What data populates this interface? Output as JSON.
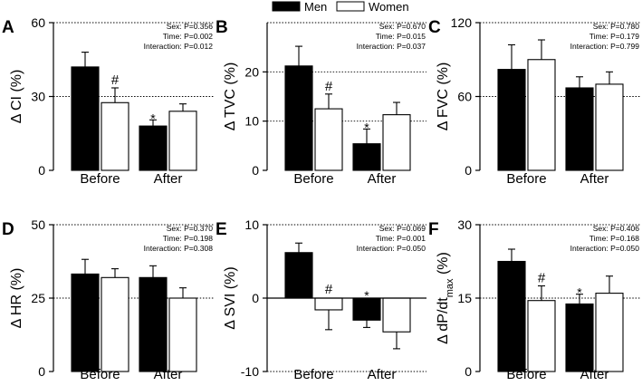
{
  "legend": {
    "series": [
      {
        "name": "Men",
        "color": "#000000"
      },
      {
        "name": "Women",
        "color": "#ffffff"
      }
    ]
  },
  "chart_data": [
    {
      "type": "bar",
      "panel": "A",
      "ylabel": "Δ CI (%)",
      "categories": [
        "Before",
        "After"
      ],
      "yticks": [
        0,
        30,
        60
      ],
      "ylim": [
        0,
        60
      ],
      "ref_lines": [
        30,
        60
      ],
      "series": [
        {
          "name": "Men",
          "values": [
            42,
            18
          ],
          "errors": [
            6,
            2.5
          ]
        },
        {
          "name": "Women",
          "values": [
            27.5,
            24
          ],
          "errors": [
            6,
            3
          ]
        }
      ],
      "annotations": [
        {
          "category": 0,
          "series": 1,
          "symbol": "#"
        },
        {
          "category": 1,
          "series": 0,
          "symbol": "*"
        }
      ],
      "stats": [
        "Sex: P=0.356",
        "Time: P=0.002",
        "Interaction: P=0.012"
      ]
    },
    {
      "type": "bar",
      "panel": "B",
      "ylabel": "Δ TVC (%)",
      "categories": [
        "Before",
        "After"
      ],
      "yticks": [
        0,
        10,
        20
      ],
      "ylim": [
        0,
        30
      ],
      "ref_lines": [
        10,
        20,
        30
      ],
      "series": [
        {
          "name": "Men",
          "values": [
            21.2,
            5.4
          ],
          "errors": [
            4,
            3
          ]
        },
        {
          "name": "Women",
          "values": [
            12.5,
            11.3
          ],
          "errors": [
            3,
            2.5
          ]
        }
      ],
      "annotations": [
        {
          "category": 0,
          "series": 1,
          "symbol": "#"
        },
        {
          "category": 1,
          "series": 0,
          "symbol": "*"
        }
      ],
      "stats": [
        "Sex: P=0.670",
        "Time: P=0.015",
        "Interaction: P=0.037"
      ]
    },
    {
      "type": "bar",
      "panel": "C",
      "ylabel": "Δ FVC (%)",
      "categories": [
        "Before",
        "After"
      ],
      "yticks": [
        0,
        60,
        120
      ],
      "ylim": [
        0,
        120
      ],
      "ref_lines": [
        60,
        120
      ],
      "series": [
        {
          "name": "Men",
          "values": [
            82,
            67
          ],
          "errors": [
            20,
            9
          ]
        },
        {
          "name": "Women",
          "values": [
            90,
            70
          ],
          "errors": [
            16,
            10
          ]
        }
      ],
      "annotations": [],
      "stats": [
        "Sex: P=0.780",
        "Time: P=0.179",
        "Interaction: P=0.799"
      ]
    },
    {
      "type": "bar",
      "panel": "D",
      "ylabel": "Δ HR (%)",
      "categories": [
        "Before",
        "After"
      ],
      "yticks": [
        0,
        25,
        50
      ],
      "ylim": [
        0,
        50
      ],
      "ref_lines": [
        25,
        50
      ],
      "series": [
        {
          "name": "Men",
          "values": [
            33.2,
            32
          ],
          "errors": [
            5,
            4
          ]
        },
        {
          "name": "Women",
          "values": [
            32,
            25
          ],
          "errors": [
            3,
            3.5
          ]
        }
      ],
      "annotations": [],
      "stats": [
        "Sex: P=0.370",
        "Time: P=0.198",
        "Interaction: P=0.308"
      ]
    },
    {
      "type": "bar",
      "panel": "E",
      "ylabel": "Δ SVI (%)",
      "categories": [
        "Before",
        "After"
      ],
      "yticks": [
        -10,
        0,
        10
      ],
      "ylim": [
        -10,
        10
      ],
      "ref_lines": [
        -10,
        0,
        10
      ],
      "series": [
        {
          "name": "Men",
          "values": [
            6.2,
            -3
          ],
          "errors": [
            1.3,
            1
          ]
        },
        {
          "name": "Women",
          "values": [
            -1.6,
            -4.6
          ],
          "errors": [
            2.7,
            2.3
          ]
        }
      ],
      "annotations": [
        {
          "category": 0,
          "series": 1,
          "symbol": "#"
        },
        {
          "category": 1,
          "series": 0,
          "symbol": "*"
        }
      ],
      "stats": [
        "Sex: P=0.069",
        "Time: P=0.001",
        "Interaction: P=0.050"
      ]
    },
    {
      "type": "bar",
      "panel": "F",
      "ylabel": "Δ dP/dt",
      "ylabel_sub": "max",
      "ylabel_suffix": " (%)",
      "categories": [
        "Before",
        "After"
      ],
      "yticks": [
        0,
        15,
        30
      ],
      "ylim": [
        0,
        30
      ],
      "ref_lines": [
        15,
        30
      ],
      "series": [
        {
          "name": "Men",
          "values": [
            22.5,
            13.8
          ],
          "errors": [
            2.5,
            2
          ]
        },
        {
          "name": "Women",
          "values": [
            14.5,
            16
          ],
          "errors": [
            3,
            3.5
          ]
        }
      ],
      "annotations": [
        {
          "category": 0,
          "series": 1,
          "symbol": "#"
        },
        {
          "category": 1,
          "series": 0,
          "symbol": "*"
        }
      ],
      "stats": [
        "Sex: P=0.406",
        "Time: P=0.168",
        "Interaction: P=0.050"
      ]
    }
  ]
}
